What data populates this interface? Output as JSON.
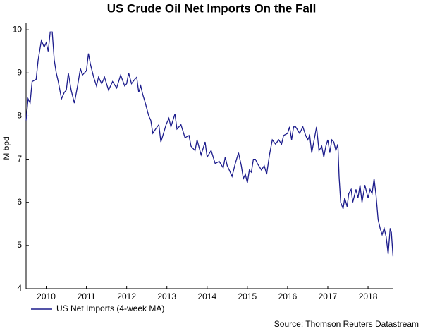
{
  "chart_data": {
    "type": "line",
    "title": "US Crude Oil Net Imports On the Fall",
    "ylabel": "M bpd",
    "source": "Source: Thomson Reuters Datastream",
    "legend": "bottom-left",
    "x": [
      2009.5,
      2009.55,
      2009.6,
      2009.65,
      2009.75,
      2009.8,
      2009.88,
      2009.95,
      2010.0,
      2010.05,
      2010.1,
      2010.15,
      2010.2,
      2010.25,
      2010.3,
      2010.38,
      2010.45,
      2010.5,
      2010.55,
      2010.62,
      2010.7,
      2010.78,
      2010.85,
      2010.9,
      2011.0,
      2011.05,
      2011.1,
      2011.18,
      2011.25,
      2011.3,
      2011.38,
      2011.45,
      2011.55,
      2011.65,
      2011.75,
      2011.85,
      2011.95,
      2012.0,
      2012.05,
      2012.12,
      2012.2,
      2012.25,
      2012.3,
      2012.35,
      2012.4,
      2012.45,
      2012.55,
      2012.6,
      2012.65,
      2012.72,
      2012.8,
      2012.85,
      2012.9,
      2012.98,
      2013.05,
      2013.1,
      2013.2,
      2013.25,
      2013.35,
      2013.45,
      2013.55,
      2013.6,
      2013.7,
      2013.75,
      2013.85,
      2013.95,
      2014.0,
      2014.1,
      2014.2,
      2014.3,
      2014.4,
      2014.45,
      2014.5,
      2014.55,
      2014.62,
      2014.7,
      2014.78,
      2014.85,
      2014.9,
      2014.95,
      2015.0,
      2015.05,
      2015.1,
      2015.15,
      2015.2,
      2015.25,
      2015.35,
      2015.42,
      2015.48,
      2015.55,
      2015.62,
      2015.7,
      2015.78,
      2015.85,
      2015.9,
      2016.0,
      2016.05,
      2016.1,
      2016.15,
      2016.2,
      2016.3,
      2016.38,
      2016.45,
      2016.5,
      2016.55,
      2016.6,
      2016.65,
      2016.72,
      2016.78,
      2016.85,
      2016.9,
      2016.95,
      2017.0,
      2017.05,
      2017.1,
      2017.15,
      2017.2,
      2017.25,
      2017.28,
      2017.32,
      2017.38,
      2017.42,
      2017.48,
      2017.52,
      2017.58,
      2017.62,
      2017.7,
      2017.75,
      2017.8,
      2017.85,
      2017.92,
      2018.0,
      2018.05,
      2018.1,
      2018.15,
      2018.2,
      2018.25,
      2018.3,
      2018.35,
      2018.4,
      2018.45,
      2018.5,
      2018.55,
      2018.58,
      2018.62
    ],
    "series": [
      {
        "name": "US Net Imports (4-week MA)",
        "color": "#1c1c8c",
        "values": [
          7.9,
          8.4,
          8.3,
          8.8,
          8.85,
          9.3,
          9.75,
          9.6,
          9.7,
          9.5,
          9.95,
          9.95,
          9.3,
          9.0,
          8.8,
          8.4,
          8.55,
          8.6,
          9.0,
          8.6,
          8.3,
          8.7,
          9.1,
          8.95,
          9.05,
          9.45,
          9.2,
          8.9,
          8.7,
          8.9,
          8.75,
          8.9,
          8.6,
          8.8,
          8.65,
          8.95,
          8.7,
          8.75,
          9.0,
          8.75,
          8.85,
          8.9,
          8.55,
          8.7,
          8.5,
          8.35,
          8.0,
          7.9,
          7.6,
          7.7,
          7.8,
          7.4,
          7.55,
          7.8,
          7.95,
          7.75,
          8.05,
          7.7,
          7.8,
          7.5,
          7.55,
          7.3,
          7.2,
          7.45,
          7.1,
          7.4,
          7.05,
          7.2,
          6.9,
          6.95,
          6.8,
          7.05,
          6.85,
          6.75,
          6.6,
          6.9,
          7.15,
          6.85,
          6.55,
          6.65,
          6.45,
          6.75,
          6.7,
          7.0,
          7.0,
          6.9,
          6.75,
          6.85,
          6.65,
          7.1,
          7.45,
          7.35,
          7.45,
          7.35,
          7.55,
          7.6,
          7.75,
          7.45,
          7.75,
          7.75,
          7.6,
          7.75,
          7.55,
          7.45,
          7.55,
          7.15,
          7.4,
          7.75,
          7.2,
          7.3,
          7.05,
          7.3,
          7.45,
          7.15,
          7.45,
          7.4,
          7.2,
          7.35,
          6.6,
          6.0,
          5.85,
          6.1,
          5.9,
          6.2,
          6.3,
          6.0,
          6.3,
          6.1,
          6.4,
          6.0,
          6.4,
          6.1,
          6.3,
          6.2,
          6.55,
          6.15,
          5.6,
          5.4,
          5.25,
          5.4,
          5.2,
          4.8,
          5.4,
          5.3,
          4.75
        ]
      }
    ],
    "xlim": [
      2009.5,
      2018.63
    ],
    "xticks": [
      2010,
      2011,
      2012,
      2013,
      2014,
      2015,
      2016,
      2017,
      2018
    ],
    "ylim": [
      4,
      10.15
    ],
    "yticks": [
      4,
      5,
      6,
      7,
      8,
      9,
      10
    ]
  }
}
